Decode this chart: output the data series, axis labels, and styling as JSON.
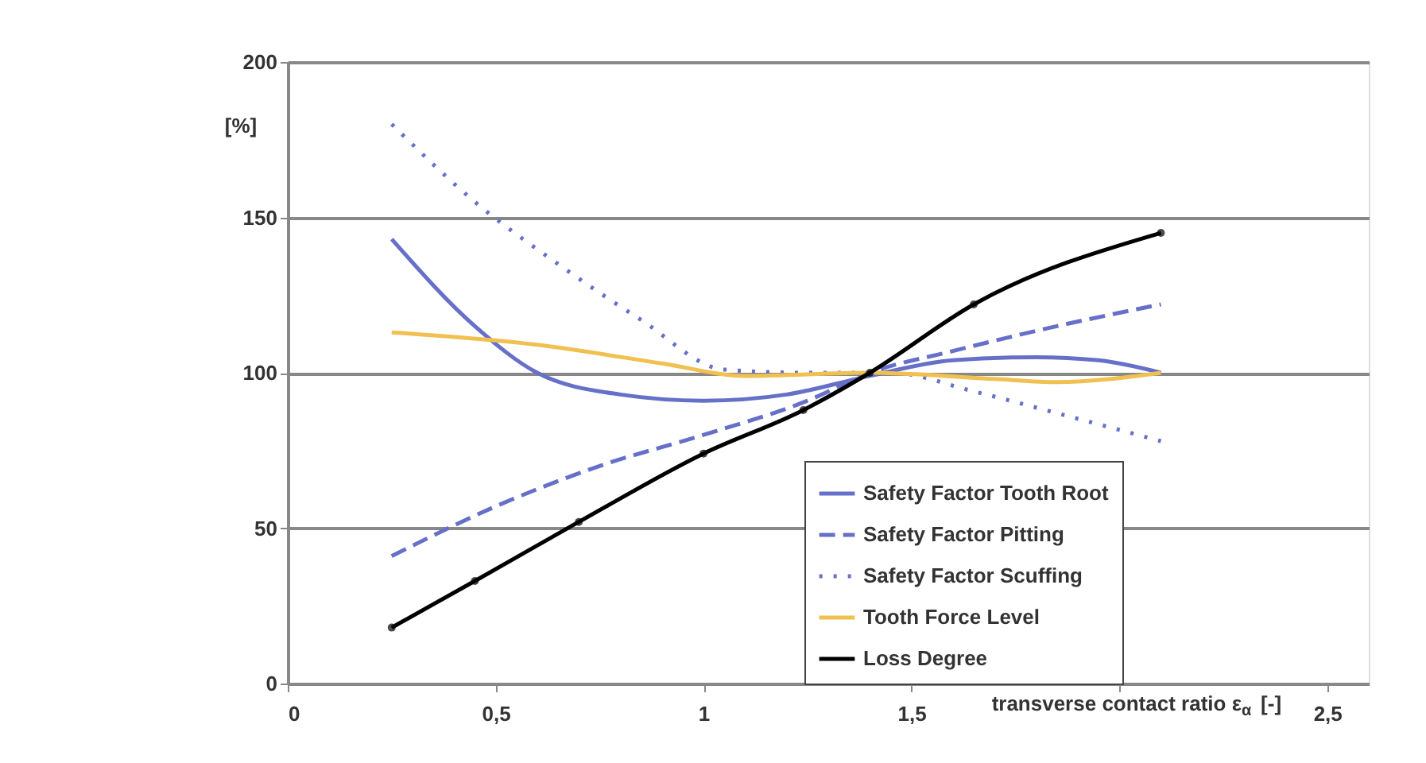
{
  "chart_data": {
    "type": "line",
    "xlabel": "transverse contact ratio ε$_{α}$ [-]",
    "ylabel": "[%]",
    "xlim": [
      0,
      2.6
    ],
    "ylim": [
      0,
      200
    ],
    "xticks": [
      0,
      {
        "value": 0.5,
        "label": "0,5"
      },
      1,
      {
        "value": 1.5,
        "label": "1,5"
      },
      {
        "value": 2,
        "label": null
      },
      {
        "value": 2.5,
        "label": "2,5"
      }
    ],
    "yticks": [
      0,
      50,
      100,
      150,
      200
    ],
    "grid": "y",
    "legend": "bottom right",
    "series": [
      {
        "name": "Safety Factor Tooth Root",
        "color": "#6670c8",
        "line_style": "solid",
        "marker": "none",
        "x": [
          0.25,
          0.45,
          0.6,
          0.8,
          1.0,
          1.2,
          1.4,
          1.6,
          1.8,
          1.95,
          2.1
        ],
        "values": [
          143,
          115,
          100,
          93,
          91,
          93,
          99,
          104,
          105,
          104,
          100
        ]
      },
      {
        "name": "Safety Factor Pitting",
        "color": "#6670c8",
        "line_style": "dashed",
        "marker": "none",
        "x": [
          0.25,
          0.5,
          0.75,
          1.0,
          1.25,
          1.4,
          1.6,
          1.85,
          2.1
        ],
        "values": [
          41,
          57,
          70,
          80,
          91,
          100,
          107,
          115,
          122
        ]
      },
      {
        "name": "Safety Factor Scuffing",
        "color": "#6670c8",
        "line_style": "dotted",
        "marker": "none",
        "x": [
          0.25,
          0.45,
          0.65,
          0.85,
          1.05,
          1.25,
          1.45,
          1.65,
          1.85,
          2.1
        ],
        "values": [
          180,
          155,
          135,
          117,
          101,
          100,
          100,
          94,
          87,
          78
        ]
      },
      {
        "name": "Tooth Force Level",
        "color": "#f0c050",
        "line_style": "solid",
        "marker": "none",
        "x": [
          0.25,
          0.6,
          0.9,
          1.1,
          1.4,
          1.7,
          1.85,
          2.1
        ],
        "values": [
          113,
          109,
          103,
          99,
          100,
          98,
          97,
          100
        ]
      },
      {
        "name": "Loss Degree",
        "color": "#000000",
        "line_style": "solid",
        "marker": "circle",
        "x": [
          0.25,
          0.45,
          0.7,
          1.0,
          1.24,
          1.4,
          1.65,
          2.1
        ],
        "values": [
          18,
          33,
          52,
          74,
          88,
          100,
          122,
          145
        ]
      }
    ]
  }
}
